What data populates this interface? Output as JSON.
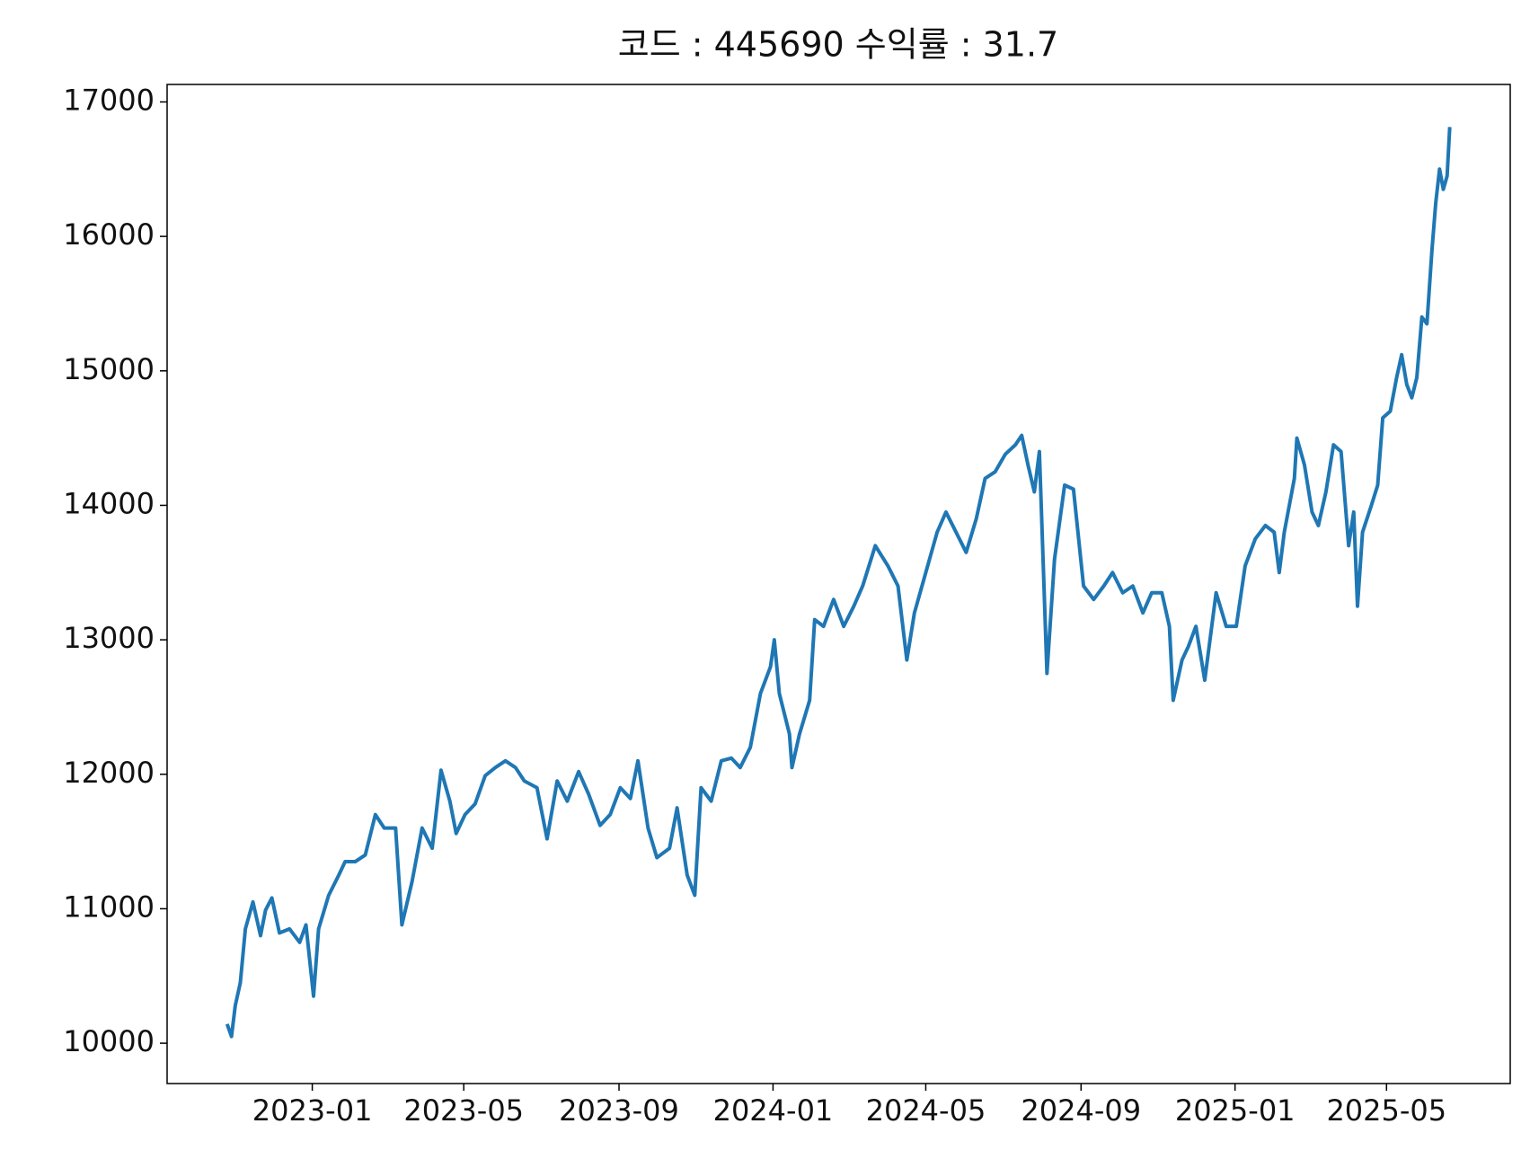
{
  "chart_data": {
    "type": "line",
    "title": "코드 : 445690 수익률 : 31.7",
    "x": [
      "2022-10-26",
      "2022-10-29",
      "2022-11-01",
      "2022-11-05",
      "2022-11-09",
      "2022-11-15",
      "2022-11-21",
      "2022-11-25",
      "2022-11-30",
      "2022-12-06",
      "2022-12-14",
      "2022-12-22",
      "2022-12-27",
      "2023-01-02",
      "2023-01-06",
      "2023-01-14",
      "2023-01-22",
      "2023-01-27",
      "2023-02-04",
      "2023-02-12",
      "2023-02-20",
      "2023-02-27",
      "2023-03-08",
      "2023-03-13",
      "2023-03-21",
      "2023-03-29",
      "2023-04-06",
      "2023-04-13",
      "2023-04-20",
      "2023-04-25",
      "2023-05-02",
      "2023-05-10",
      "2023-05-18",
      "2023-05-26",
      "2023-06-03",
      "2023-06-11",
      "2023-06-18",
      "2023-06-28",
      "2023-07-06",
      "2023-07-14",
      "2023-07-22",
      "2023-07-31",
      "2023-08-08",
      "2023-08-17",
      "2023-08-25",
      "2023-09-02",
      "2023-09-10",
      "2023-09-16",
      "2023-09-24",
      "2023-10-01",
      "2023-10-11",
      "2023-10-17",
      "2023-10-25",
      "2023-10-31",
      "2023-11-05",
      "2023-11-13",
      "2023-11-21",
      "2023-11-29",
      "2023-12-06",
      "2023-12-14",
      "2023-12-22",
      "2023-12-30",
      "2024-01-02",
      "2024-01-06",
      "2024-01-14",
      "2024-01-16",
      "2024-01-22",
      "2024-01-30",
      "2024-02-03",
      "2024-02-10",
      "2024-02-18",
      "2024-02-26",
      "2024-03-05",
      "2024-03-12",
      "2024-03-22",
      "2024-04-01",
      "2024-04-09",
      "2024-04-16",
      "2024-04-22",
      "2024-05-01",
      "2024-05-10",
      "2024-05-17",
      "2024-05-25",
      "2024-06-02",
      "2024-06-10",
      "2024-06-17",
      "2024-06-25",
      "2024-07-03",
      "2024-07-11",
      "2024-07-16",
      "2024-07-21",
      "2024-07-26",
      "2024-07-30",
      "2024-08-05",
      "2024-08-11",
      "2024-08-19",
      "2024-08-26",
      "2024-09-03",
      "2024-09-11",
      "2024-09-19",
      "2024-09-26",
      "2024-10-04",
      "2024-10-12",
      "2024-10-20",
      "2024-10-27",
      "2024-11-04",
      "2024-11-10",
      "2024-11-13",
      "2024-11-20",
      "2024-11-25",
      "2024-12-01",
      "2024-12-08",
      "2024-12-17",
      "2024-12-25",
      "2025-01-02",
      "2025-01-09",
      "2025-01-17",
      "2025-01-25",
      "2025-02-01",
      "2025-02-05",
      "2025-02-09",
      "2025-02-17",
      "2025-02-19",
      "2025-02-25",
      "2025-03-03",
      "2025-03-08",
      "2025-03-14",
      "2025-03-20",
      "2025-03-26",
      "2025-04-01",
      "2025-04-05",
      "2025-04-08",
      "2025-04-12",
      "2025-04-19",
      "2025-04-24",
      "2025-04-28",
      "2025-05-04",
      "2025-05-09",
      "2025-05-13",
      "2025-05-17",
      "2025-05-21",
      "2025-05-25",
      "2025-05-29",
      "2025-06-02",
      "2025-06-06",
      "2025-06-09",
      "2025-06-12",
      "2025-06-15",
      "2025-06-18",
      "2025-06-20"
    ],
    "series": [
      {
        "color": "#1f77b4",
        "values": [
          10130,
          10050,
          10280,
          10450,
          10850,
          11050,
          10800,
          10990,
          11080,
          10820,
          10850,
          10750,
          10880,
          10350,
          10850,
          11100,
          11250,
          11350,
          11350,
          11400,
          11700,
          11600,
          11600,
          10880,
          11200,
          11600,
          11450,
          12030,
          11800,
          11560,
          11700,
          11780,
          11990,
          12050,
          12100,
          12050,
          11950,
          11900,
          11520,
          11950,
          11800,
          12020,
          11850,
          11620,
          11700,
          11900,
          11820,
          12100,
          11600,
          11380,
          11450,
          11750,
          11250,
          11100,
          11900,
          11800,
          12100,
          12120,
          12050,
          12200,
          12600,
          12800,
          13000,
          12600,
          12300,
          12050,
          12300,
          12550,
          13150,
          13100,
          13300,
          13100,
          13250,
          13400,
          13700,
          13550,
          13400,
          12850,
          13200,
          13500,
          13800,
          13950,
          13800,
          13650,
          13900,
          14200,
          14250,
          14380,
          14450,
          14520,
          14300,
          14100,
          14400,
          12750,
          13600,
          14150,
          14120,
          13400,
          13300,
          13400,
          13500,
          13350,
          13400,
          13200,
          13350,
          13350,
          13100,
          12550,
          12850,
          12950,
          13100,
          12700,
          13350,
          13100,
          13100,
          13550,
          13750,
          13850,
          13800,
          13500,
          13800,
          14200,
          14500,
          14300,
          13950,
          13850,
          14100,
          14450,
          14400,
          13700,
          13950,
          13250,
          13800,
          14000,
          14150,
          14650,
          14700,
          14950,
          15120,
          14900,
          14800,
          14950,
          15400,
          15350,
          15900,
          16250,
          16500,
          16350,
          16450,
          16800
        ]
      }
    ],
    "xlim": [
      "2022-09-08",
      "2025-08-07"
    ],
    "xticks": [
      "2023-01",
      "2023-05",
      "2023-09",
      "2024-01",
      "2024-05",
      "2024-09",
      "2025-01",
      "2025-05"
    ],
    "ylim": [
      9700,
      17130
    ],
    "yticks": [
      10000,
      11000,
      12000,
      13000,
      14000,
      15000,
      16000,
      17000
    ]
  }
}
